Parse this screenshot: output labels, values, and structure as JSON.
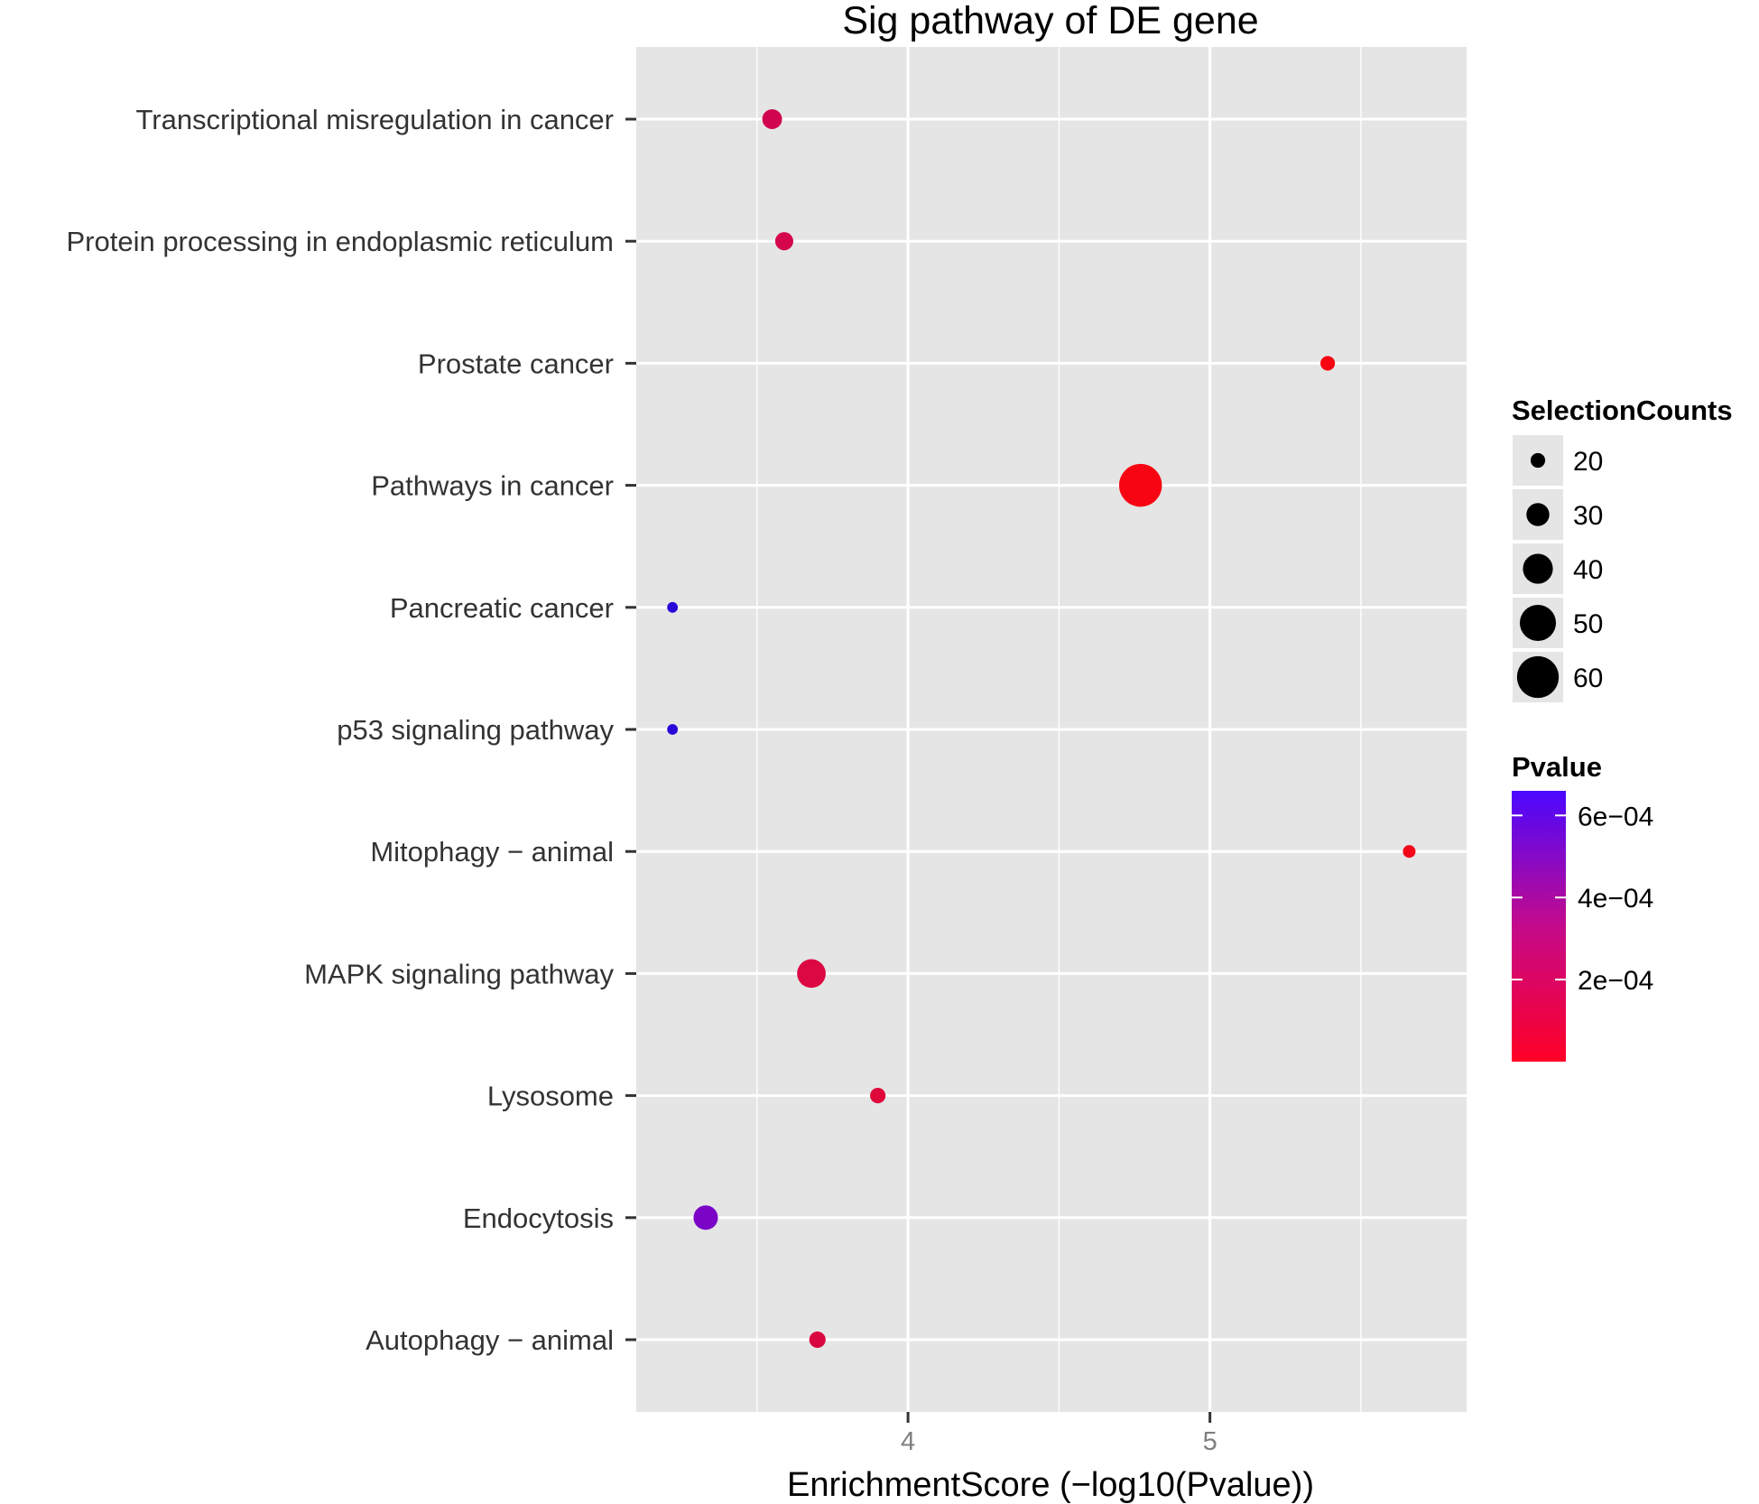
{
  "chart_data": {
    "type": "scatter",
    "title": "Sig pathway of DE gene",
    "xlabel": "EnrichmentScore (−log10(Pvalue))",
    "ylabel": "",
    "xlim": [
      3.1,
      5.85
    ],
    "x_ticks": [
      4,
      5
    ],
    "x_tick_labels": [
      "4",
      "5"
    ],
    "grid": true,
    "categories": [
      "Transcriptional misregulation in cancer",
      "Protein processing in endoplasmic reticulum",
      "Prostate cancer",
      "Pathways in cancer",
      "Pancreatic cancer",
      "p53 signaling pathway",
      "Mitophagy − animal",
      "MAPK signaling pathway",
      "Lysosome",
      "Endocytosis",
      "Autophagy − animal"
    ],
    "points": [
      {
        "pathway": "Transcriptional misregulation in cancer",
        "enrichment_score": 3.55,
        "selection_counts": 26,
        "pvalue": 0.000282,
        "color": "#d1054f"
      },
      {
        "pathway": "Protein processing in endoplasmic reticulum",
        "enrichment_score": 3.59,
        "selection_counts": 24,
        "pvalue": 0.000257,
        "color": "#d5064b"
      },
      {
        "pathway": "Prostate cancer",
        "enrichment_score": 5.39,
        "selection_counts": 20,
        "pvalue": 4.1e-06,
        "color": "#f70510"
      },
      {
        "pathway": "Pathways in cancer",
        "enrichment_score": 4.77,
        "selection_counts": 62,
        "pvalue": 1.7e-05,
        "color": "#f80513"
      },
      {
        "pathway": "Pancreatic cancer",
        "enrichment_score": 3.22,
        "selection_counts": 16,
        "pvalue": 0.000603,
        "color": "#2a07d9"
      },
      {
        "pathway": "p53 signaling pathway",
        "enrichment_score": 3.22,
        "selection_counts": 16,
        "pvalue": 0.000603,
        "color": "#2a07d9"
      },
      {
        "pathway": "Mitophagy − animal",
        "enrichment_score": 5.66,
        "selection_counts": 18,
        "pvalue": 2.2e-06,
        "color": "#f3061a"
      },
      {
        "pathway": "MAPK signaling pathway",
        "enrichment_score": 3.68,
        "selection_counts": 38,
        "pvalue": 0.000209,
        "color": "#dc0844"
      },
      {
        "pathway": "Lysosome",
        "enrichment_score": 3.9,
        "selection_counts": 21,
        "pvalue": 0.000126,
        "color": "#df083a"
      },
      {
        "pathway": "Endocytosis",
        "enrichment_score": 3.33,
        "selection_counts": 32,
        "pvalue": 0.000468,
        "color": "#7a05c6"
      },
      {
        "pathway": "Autophagy − animal",
        "enrichment_score": 3.7,
        "selection_counts": 22,
        "pvalue": 0.0002,
        "color": "#d9073f"
      }
    ],
    "legend_size": {
      "title": "SelectionCounts",
      "position": "right",
      "values": [
        20,
        30,
        40,
        50,
        60
      ],
      "labels": [
        "20",
        "30",
        "40",
        "50",
        "60"
      ]
    },
    "legend_color": {
      "title": "Pvalue",
      "position": "right",
      "low_color": "#ff0026",
      "high_color": "#4b08ff",
      "range": [
        0,
        0.00066
      ],
      "ticks": [
        0.0002,
        0.0004,
        0.0006
      ],
      "tick_labels": [
        "2e−04",
        "4e−04",
        "6e−04"
      ]
    },
    "panel_color": "#e5e5e5",
    "grid_color": "#ffffff"
  }
}
